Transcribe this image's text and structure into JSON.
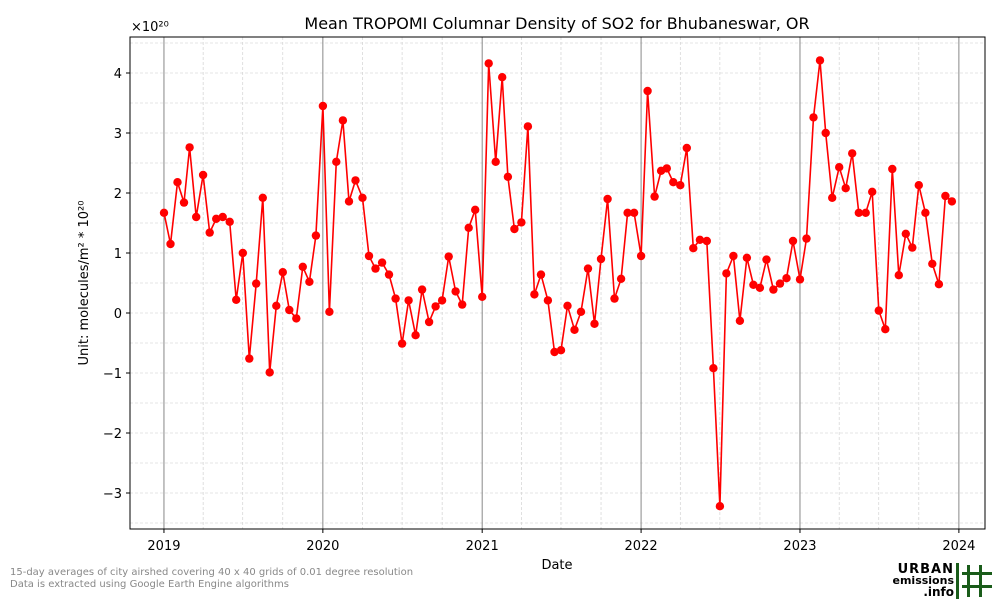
{
  "chart_data": {
    "type": "line",
    "title": "Mean TROPOMI Columnar Density of SO2 for Bhubaneswar, OR",
    "xlabel": "Date",
    "ylabel": "Unit: molecules/m² * 10²⁰",
    "y_multiplier_label": "×10²⁰",
    "xlim": [
      "2018-10-15",
      "2024-03-01"
    ],
    "ylim": [
      -3.6,
      4.6
    ],
    "x_ticks": [
      "2019",
      "2020",
      "2021",
      "2022",
      "2023",
      "2024"
    ],
    "y_ticks": [
      "−3",
      "−2",
      "−1",
      "0",
      "1",
      "2",
      "3",
      "4"
    ],
    "y_tick_values": [
      -3,
      -2,
      -1,
      0,
      1,
      2,
      3,
      4
    ],
    "grid": true,
    "series_color": "#ff0000",
    "series": [
      {
        "x": [
          "2019-01-01",
          "2019-01-16",
          "2019-02-01",
          "2019-02-16",
          "2019-03-01",
          "2019-03-16",
          "2019-04-01",
          "2019-04-16",
          "2019-05-01",
          "2019-05-16",
          "2019-06-01",
          "2019-06-16",
          "2019-07-01",
          "2019-07-16",
          "2019-08-01",
          "2019-08-16",
          "2019-09-01",
          "2019-09-16",
          "2019-10-01",
          "2019-10-16",
          "2019-11-01",
          "2019-11-16",
          "2019-12-01",
          "2019-12-16",
          "2020-01-01",
          "2020-01-16",
          "2020-02-01",
          "2020-02-16",
          "2020-03-01",
          "2020-03-16",
          "2020-04-01",
          "2020-04-16",
          "2020-05-01",
          "2020-05-16",
          "2020-06-01",
          "2020-06-16",
          "2020-07-01",
          "2020-07-16",
          "2020-08-01",
          "2020-08-16",
          "2020-09-01",
          "2020-09-16",
          "2020-10-01",
          "2020-10-16",
          "2020-11-01",
          "2020-11-16",
          "2020-12-01",
          "2020-12-16",
          "2021-01-01",
          "2021-01-16",
          "2021-02-01",
          "2021-02-16",
          "2021-03-01",
          "2021-03-16",
          "2021-04-01",
          "2021-04-16",
          "2021-05-01",
          "2021-05-16",
          "2021-06-01",
          "2021-06-16",
          "2021-07-01",
          "2021-07-16",
          "2021-08-01",
          "2021-08-16",
          "2021-09-01",
          "2021-09-16",
          "2021-10-01",
          "2021-10-16",
          "2021-11-01",
          "2021-11-16",
          "2021-12-01",
          "2021-12-16",
          "2022-01-01",
          "2022-01-16",
          "2022-02-01",
          "2022-02-16",
          "2022-03-01",
          "2022-03-16",
          "2022-04-01",
          "2022-04-16",
          "2022-05-01",
          "2022-05-16",
          "2022-06-01",
          "2022-06-16",
          "2022-07-01",
          "2022-07-16",
          "2022-08-01",
          "2022-08-16",
          "2022-09-01",
          "2022-09-16",
          "2022-10-01",
          "2022-10-16",
          "2022-11-01",
          "2022-11-16",
          "2022-12-01",
          "2022-12-16",
          "2023-01-01",
          "2023-01-16",
          "2023-02-01",
          "2023-02-16",
          "2023-03-01",
          "2023-03-16",
          "2023-04-01",
          "2023-04-16",
          "2023-05-01",
          "2023-05-16",
          "2023-06-01",
          "2023-06-16",
          "2023-07-01",
          "2023-07-16",
          "2023-08-01",
          "2023-08-16",
          "2023-09-01",
          "2023-09-16",
          "2023-10-01",
          "2023-10-16",
          "2023-11-01",
          "2023-11-16",
          "2023-12-01",
          "2023-12-16"
        ],
        "y": [
          1.67,
          1.15,
          2.18,
          1.84,
          2.76,
          1.6,
          2.3,
          1.34,
          1.57,
          1.6,
          1.52,
          0.22,
          1.0,
          -0.76,
          0.49,
          1.92,
          -0.99,
          0.12,
          0.68,
          0.05,
          -0.09,
          0.77,
          0.52,
          1.29,
          3.45,
          0.02,
          2.52,
          3.21,
          1.86,
          2.21,
          1.92,
          0.95,
          0.74,
          0.84,
          0.64,
          0.24,
          -0.51,
          0.21,
          -0.37,
          0.39,
          -0.15,
          0.11,
          0.21,
          0.94,
          0.36,
          0.14,
          1.42,
          1.72,
          0.27,
          4.16,
          2.52,
          3.93,
          2.27,
          1.4,
          1.51,
          3.11,
          0.31,
          0.64,
          0.21,
          -0.65,
          -0.62,
          0.12,
          -0.28,
          0.02,
          0.74,
          -0.18,
          0.9,
          1.9,
          0.24,
          0.57,
          1.67,
          1.67,
          0.95,
          3.7,
          1.94,
          2.37,
          2.41,
          2.18,
          2.13,
          2.75,
          1.08,
          1.22,
          1.2,
          -0.92,
          -3.22,
          0.66,
          0.95,
          -0.13,
          0.92,
          0.47,
          0.42,
          0.89,
          0.39,
          0.49,
          0.58,
          1.2,
          0.56,
          1.24,
          3.26,
          4.21,
          3.0,
          1.92,
          2.43,
          2.08,
          2.66,
          1.67,
          1.67,
          2.02,
          0.04,
          -0.27,
          2.4,
          0.63,
          1.32,
          1.09,
          2.13,
          1.67,
          0.82,
          0.48,
          1.95,
          1.86
        ]
      }
    ]
  },
  "footer": {
    "note_line1": "15-day averages of city airshed covering 40 x 40 grids of 0.01 degree resolution",
    "note_line2": "Data is extracted using Google Earth Engine algorithms"
  },
  "logo": {
    "line1": "URBAN",
    "line2": "emissions",
    "line3": ".info",
    "color": "#1a5c1a"
  }
}
